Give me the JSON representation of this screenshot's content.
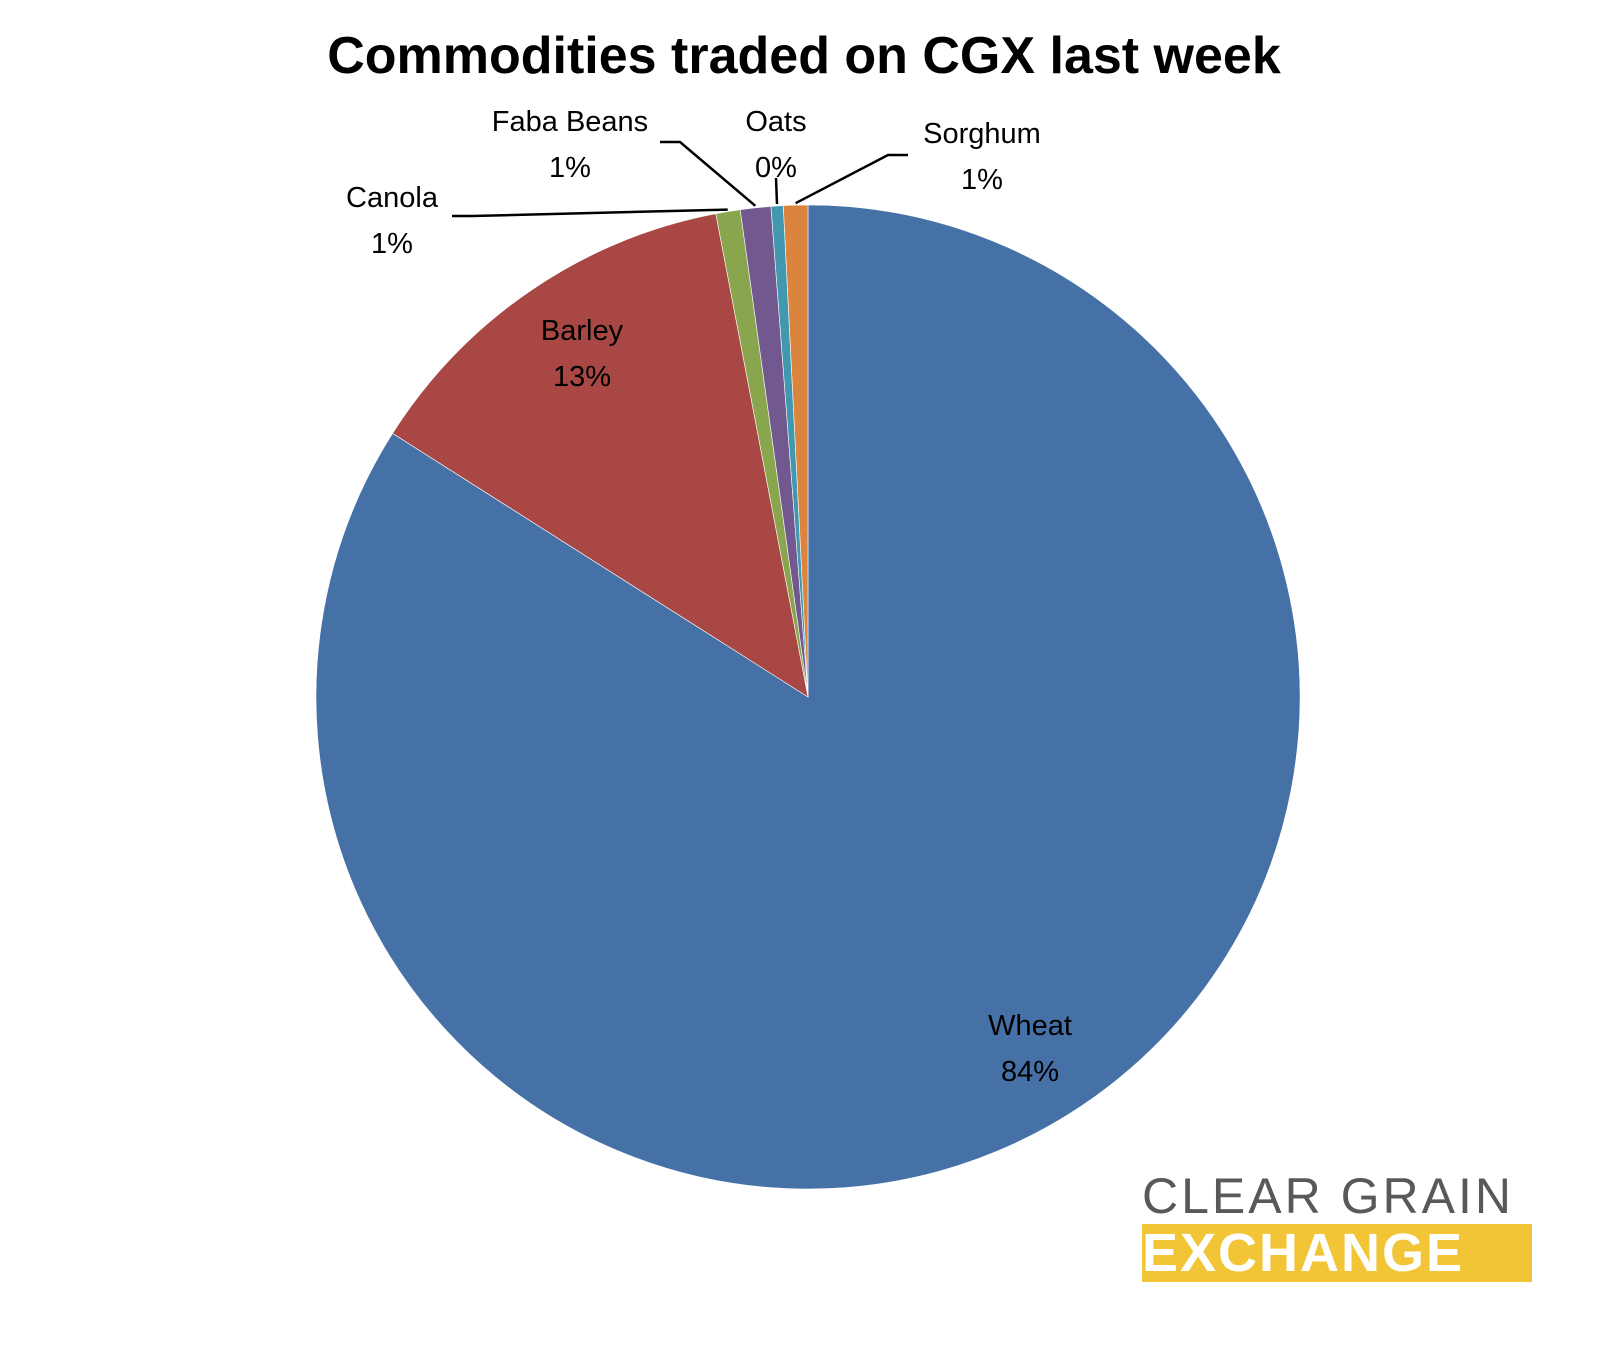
{
  "chart_data": {
    "type": "pie",
    "title": "Commodities traded on CGX last week",
    "slices": [
      {
        "name": "Wheat",
        "value": 84,
        "label": "84%",
        "color": "#4671a6"
      },
      {
        "name": "Barley",
        "value": 13,
        "label": "13%",
        "color": "#a84744"
      },
      {
        "name": "Canola",
        "value": 0.8,
        "label": "1%",
        "color": "#89a54e"
      },
      {
        "name": "Faba Beans",
        "value": 1.0,
        "label": "1%",
        "color": "#71588f"
      },
      {
        "name": "Oats",
        "value": 0.4,
        "label": "0%",
        "color": "#4198af"
      },
      {
        "name": "Sorghum",
        "value": 0.8,
        "label": "1%",
        "color": "#db843d"
      }
    ],
    "start_direction": "12 o'clock",
    "direction": "clockwise",
    "legend": "none (data labels)"
  },
  "logo": {
    "line1": "CLEAR GRAIN",
    "line2": "EXCHANGE",
    "text_color": "#58595b",
    "accent": "#f2c537"
  }
}
